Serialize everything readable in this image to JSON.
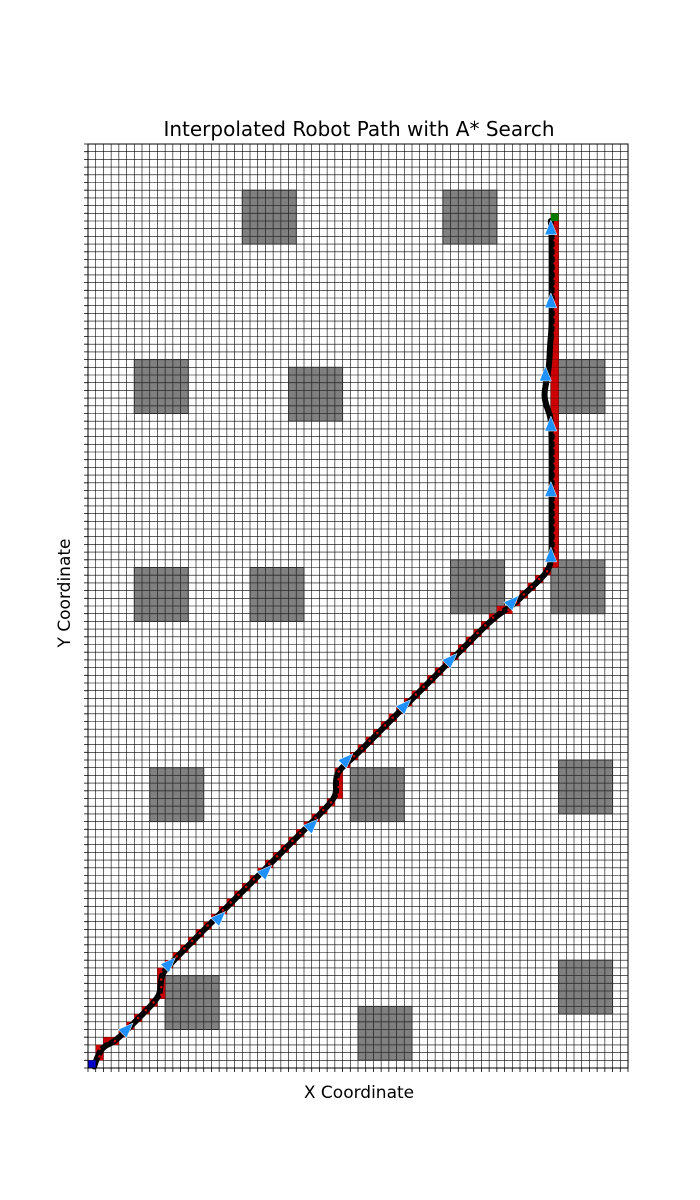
{
  "chart_data": {
    "type": "grid-path",
    "title": "Interpolated Robot Path with A* Search",
    "xlabel": "X Coordinate",
    "ylabel": "Y Coordinate",
    "grid": true,
    "xlim": [
      0,
      70
    ],
    "ylim": [
      0,
      120
    ],
    "colors": {
      "background": "#ffffff",
      "grid_line": "#000000",
      "obstacle": "#808080",
      "obstacle_grid": "#2b2b2b",
      "astar_cells": "#cc0000",
      "interpolated_path": "#000000",
      "direction_arrows": "#1e90ff",
      "start": "#0000cc",
      "goal": "#007a00"
    },
    "start": [
      0,
      0
    ],
    "goal": [
      60,
      110
    ],
    "obstacles": [
      {
        "x0": 20,
        "y0": 107,
        "x1": 27,
        "y1": 114
      },
      {
        "x0": 46,
        "y0": 107,
        "x1": 53,
        "y1": 114
      },
      {
        "x0": 6,
        "y0": 85,
        "x1": 13,
        "y1": 92
      },
      {
        "x0": 26,
        "y0": 84,
        "x1": 33,
        "y1": 91
      },
      {
        "x0": 60,
        "y0": 85,
        "x1": 67,
        "y1": 92
      },
      {
        "x0": 6,
        "y0": 58,
        "x1": 13,
        "y1": 65
      },
      {
        "x0": 21,
        "y0": 58,
        "x1": 28,
        "y1": 65
      },
      {
        "x0": 47,
        "y0": 59,
        "x1": 54,
        "y1": 66
      },
      {
        "x0": 60,
        "y0": 59,
        "x1": 67,
        "y1": 66
      },
      {
        "x0": 8,
        "y0": 32,
        "x1": 15,
        "y1": 39
      },
      {
        "x0": 34,
        "y0": 32,
        "x1": 41,
        "y1": 39
      },
      {
        "x0": 61,
        "y0": 33,
        "x1": 68,
        "y1": 40
      },
      {
        "x0": 10,
        "y0": 5,
        "x1": 17,
        "y1": 12
      },
      {
        "x0": 35,
        "y0": 1,
        "x1": 42,
        "y1": 8
      },
      {
        "x0": 61,
        "y0": 7,
        "x1": 68,
        "y1": 14
      }
    ],
    "astar_path": [
      [
        0,
        0
      ],
      [
        1,
        1
      ],
      [
        1,
        2
      ],
      [
        2,
        3
      ],
      [
        3,
        3
      ],
      [
        4,
        4
      ],
      [
        5,
        5
      ],
      [
        6,
        6
      ],
      [
        7,
        7
      ],
      [
        8,
        8
      ],
      [
        9,
        9
      ],
      [
        9,
        10
      ],
      [
        9,
        11
      ],
      [
        9,
        12
      ],
      [
        10,
        13
      ],
      [
        11,
        14
      ],
      [
        12,
        15
      ],
      [
        13,
        16
      ],
      [
        14,
        17
      ],
      [
        15,
        18
      ],
      [
        16,
        19
      ],
      [
        17,
        20
      ],
      [
        18,
        21
      ],
      [
        19,
        22
      ],
      [
        20,
        23
      ],
      [
        21,
        24
      ],
      [
        22,
        25
      ],
      [
        23,
        26
      ],
      [
        24,
        27
      ],
      [
        25,
        28
      ],
      [
        26,
        29
      ],
      [
        27,
        30
      ],
      [
        28,
        31
      ],
      [
        29,
        32
      ],
      [
        30,
        33
      ],
      [
        31,
        34
      ],
      [
        32,
        35
      ],
      [
        32,
        36
      ],
      [
        32,
        37
      ],
      [
        32,
        38
      ],
      [
        33,
        39
      ],
      [
        34,
        40
      ],
      [
        35,
        41
      ],
      [
        36,
        42
      ],
      [
        37,
        43
      ],
      [
        38,
        44
      ],
      [
        39,
        45
      ],
      [
        40,
        46
      ],
      [
        41,
        47
      ],
      [
        42,
        48
      ],
      [
        43,
        49
      ],
      [
        44,
        50
      ],
      [
        45,
        51
      ],
      [
        46,
        52
      ],
      [
        47,
        53
      ],
      [
        48,
        54
      ],
      [
        49,
        55
      ],
      [
        50,
        56
      ],
      [
        51,
        57
      ],
      [
        52,
        58
      ],
      [
        53,
        59
      ],
      [
        54,
        59
      ],
      [
        55,
        60
      ],
      [
        56,
        61
      ],
      [
        57,
        62
      ],
      [
        58,
        63
      ],
      [
        59,
        64
      ],
      [
        60,
        65
      ],
      [
        60,
        66
      ],
      [
        60,
        67
      ],
      [
        60,
        68
      ],
      [
        60,
        69
      ],
      [
        60,
        70
      ],
      [
        60,
        71
      ],
      [
        60,
        72
      ],
      [
        60,
        73
      ],
      [
        60,
        74
      ],
      [
        60,
        75
      ],
      [
        60,
        76
      ],
      [
        60,
        77
      ],
      [
        60,
        78
      ],
      [
        60,
        79
      ],
      [
        60,
        80
      ],
      [
        60,
        81
      ],
      [
        60,
        82
      ],
      [
        60,
        83
      ],
      [
        60,
        84
      ],
      [
        60,
        85
      ],
      [
        60,
        86
      ],
      [
        60,
        87
      ],
      [
        60,
        88
      ],
      [
        60,
        89
      ],
      [
        60,
        90
      ],
      [
        60,
        91
      ],
      [
        60,
        92
      ],
      [
        60,
        93
      ],
      [
        60,
        94
      ],
      [
        60,
        95
      ],
      [
        60,
        96
      ],
      [
        60,
        97
      ],
      [
        60,
        98
      ],
      [
        60,
        99
      ],
      [
        60,
        100
      ],
      [
        60,
        101
      ],
      [
        60,
        102
      ],
      [
        60,
        103
      ],
      [
        60,
        104
      ],
      [
        60,
        105
      ],
      [
        60,
        106
      ],
      [
        60,
        107
      ],
      [
        60,
        108
      ],
      [
        60,
        109
      ],
      [
        60,
        110
      ]
    ],
    "interpolated_path": [
      [
        0.8,
        0.2
      ],
      [
        1.2,
        1.5
      ],
      [
        2,
        2.8
      ],
      [
        3.2,
        3.3
      ],
      [
        4.5,
        4.4
      ],
      [
        6,
        5.9
      ],
      [
        7.5,
        7.4
      ],
      [
        8.6,
        8.6
      ],
      [
        9.3,
        9.6
      ],
      [
        9.4,
        10.8
      ],
      [
        9.6,
        12.2
      ],
      [
        10.4,
        13.2
      ],
      [
        12,
        14.9
      ],
      [
        14,
        16.9
      ],
      [
        16,
        18.9
      ],
      [
        18,
        20.9
      ],
      [
        20,
        22.9
      ],
      [
        22,
        24.9
      ],
      [
        24,
        26.9
      ],
      [
        26,
        28.9
      ],
      [
        28,
        30.9
      ],
      [
        30,
        32.9
      ],
      [
        31.6,
        34.6
      ],
      [
        32.2,
        35.7
      ],
      [
        32.1,
        37
      ],
      [
        32.3,
        38.3
      ],
      [
        33.1,
        39.2
      ],
      [
        35,
        40.9
      ],
      [
        37,
        42.9
      ],
      [
        39,
        44.9
      ],
      [
        41,
        46.9
      ],
      [
        43,
        48.9
      ],
      [
        45,
        50.9
      ],
      [
        47,
        52.9
      ],
      [
        49,
        54.9
      ],
      [
        51,
        56.9
      ],
      [
        52.6,
        58.4
      ],
      [
        53.8,
        59.3
      ],
      [
        55.2,
        60.2
      ],
      [
        56.8,
        61.8
      ],
      [
        58.5,
        63.3
      ],
      [
        59.8,
        64.8
      ],
      [
        60.1,
        66.5
      ],
      [
        60.1,
        70
      ],
      [
        60.1,
        74
      ],
      [
        60.1,
        78
      ],
      [
        60.1,
        82
      ],
      [
        60,
        84.5
      ],
      [
        59.4,
        86
      ],
      [
        59.1,
        87.5
      ],
      [
        59.5,
        89.5
      ],
      [
        59.8,
        91.5
      ],
      [
        59.9,
        94
      ],
      [
        60.1,
        96
      ],
      [
        60.1,
        99
      ],
      [
        60.1,
        102
      ],
      [
        60.1,
        105
      ],
      [
        60.1,
        108
      ],
      [
        60,
        110
      ]
    ],
    "direction_arrows": [
      {
        "x": 5,
        "y": 5,
        "angle": 45
      },
      {
        "x": 10.5,
        "y": 13.5,
        "angle": 45
      },
      {
        "x": 17,
        "y": 19.5,
        "angle": 45
      },
      {
        "x": 23,
        "y": 25.5,
        "angle": 45
      },
      {
        "x": 29,
        "y": 31.5,
        "angle": 45
      },
      {
        "x": 33.5,
        "y": 40,
        "angle": 45
      },
      {
        "x": 41,
        "y": 47,
        "angle": 45
      },
      {
        "x": 47,
        "y": 53,
        "angle": 45
      },
      {
        "x": 55,
        "y": 60.5,
        "angle": 45
      },
      {
        "x": 60,
        "y": 66.5,
        "angle": 90
      },
      {
        "x": 60,
        "y": 75,
        "angle": 90
      },
      {
        "x": 60,
        "y": 83.5,
        "angle": 90
      },
      {
        "x": 59.3,
        "y": 90,
        "angle": 90
      },
      {
        "x": 60,
        "y": 99.5,
        "angle": 90
      },
      {
        "x": 60,
        "y": 109,
        "angle": 90
      }
    ]
  }
}
